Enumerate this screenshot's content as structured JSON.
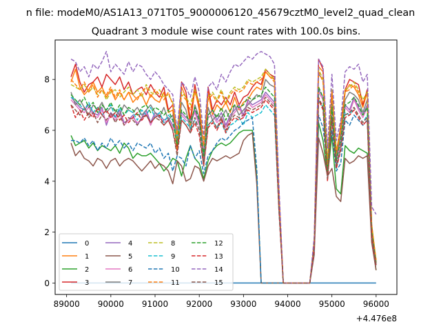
{
  "chart_data": {
    "type": "line",
    "suptitle": "n file: modeM0/AS1A13_071T05_9000006120_45679cztM0_level2_quad_clean",
    "title": "Quadrant 3 module wise count rates with 100.0s bins.",
    "xlabel": "",
    "ylabel": "",
    "x_offset_label": "+4.476e8",
    "xlim": [
      88740,
      96470
    ],
    "ylim": [
      -0.45,
      9.55
    ],
    "xticks": [
      89000,
      90000,
      91000,
      92000,
      93000,
      94000,
      95000,
      96000
    ],
    "xtick_labels": [
      "89000",
      "90000",
      "91000",
      "92000",
      "93000",
      "94000",
      "95000",
      "96000"
    ],
    "yticks": [
      0,
      2,
      4,
      6,
      8
    ],
    "ytick_labels": [
      "0",
      "2",
      "4",
      "6",
      "8"
    ],
    "grid": false,
    "legend_position": "lower-left",
    "x_start": 89100,
    "x_step": 100,
    "series": [
      {
        "name": "0",
        "color": "#1f77b4",
        "dash": "solid",
        "values": [
          0,
          0,
          0,
          0,
          0,
          0,
          0,
          0,
          0,
          0,
          0,
          0,
          0,
          0,
          0,
          0,
          0,
          0,
          0,
          0,
          0,
          0,
          0,
          0,
          0,
          0,
          0,
          0,
          0,
          0,
          0,
          0,
          0,
          0,
          0,
          0,
          0,
          0,
          0,
          0,
          0,
          0,
          0,
          0,
          0,
          0,
          0,
          0,
          0,
          0,
          0,
          0,
          0,
          0,
          0,
          0,
          0,
          0,
          0,
          0,
          0,
          0,
          0,
          0,
          0,
          0,
          0,
          0,
          0,
          0
        ]
      },
      {
        "name": "1",
        "color": "#ff7f0e",
        "dash": "solid",
        "values": [
          7.9,
          8.4,
          7.7,
          7.4,
          7.6,
          7.9,
          7.5,
          7.7,
          7.3,
          7.6,
          7.2,
          7.5,
          7.2,
          7.5,
          7.1,
          7.3,
          7.4,
          7.0,
          7.4,
          7.2,
          7.1,
          7.5,
          6.7,
          6.8,
          5.2,
          7.7,
          7.3,
          6.2,
          7.6,
          6.8,
          4.9,
          7.5,
          6.6,
          7.0,
          6.8,
          7.1,
          6.7,
          7.3,
          6.8,
          7.1,
          7.2,
          7.5,
          7.7,
          7.6,
          8.3,
          8.1,
          8.0,
          3.5,
          0,
          0,
          0,
          0,
          0,
          0,
          0,
          1.5,
          8.5,
          8.3,
          4.5,
          7.4,
          5.0,
          6.0,
          7.5,
          7.8,
          7.7,
          7.4,
          6.9,
          7.5,
          2.2,
          0.7
        ]
      },
      {
        "name": "2",
        "color": "#2ca02c",
        "dash": "solid",
        "values": [
          5.8,
          5.4,
          5.5,
          5.6,
          5.3,
          5.5,
          5.2,
          5.4,
          5.3,
          5.2,
          5.4,
          5.1,
          5.5,
          5.3,
          4.9,
          5.1,
          5.0,
          5.0,
          5.1,
          4.9,
          4.7,
          4.4,
          4.6,
          4.9,
          4.8,
          4.2,
          4.9,
          5.4,
          4.9,
          4.7,
          4.1,
          4.8,
          5.2,
          5.4,
          5.5,
          5.4,
          5.5,
          5.7,
          5.9,
          6.0,
          6.0,
          6.0,
          4.2,
          0,
          0,
          0,
          0,
          0,
          0,
          0,
          0,
          0,
          0,
          0,
          0,
          1.4,
          6.3,
          5.6,
          4.2,
          5.8,
          3.7,
          3.5,
          5.4,
          5.2,
          5.1,
          5.3,
          5.2,
          5.1,
          1.8,
          0.5
        ]
      },
      {
        "name": "3",
        "color": "#d62728",
        "dash": "solid",
        "values": [
          8.1,
          8.6,
          7.9,
          7.5,
          7.8,
          7.9,
          8.1,
          7.7,
          8.2,
          8.0,
          7.8,
          8.1,
          7.6,
          7.9,
          7.4,
          7.6,
          7.7,
          7.4,
          7.8,
          7.5,
          7.3,
          7.7,
          6.8,
          7.0,
          5.6,
          7.9,
          7.5,
          6.4,
          7.8,
          6.9,
          5.0,
          7.7,
          6.8,
          7.2,
          7.0,
          7.3,
          7.0,
          7.5,
          7.0,
          7.3,
          7.4,
          7.7,
          7.9,
          7.8,
          8.4,
          8.2,
          8.1,
          3.6,
          0,
          0,
          0,
          0,
          0,
          0,
          0,
          1.6,
          8.8,
          8.4,
          4.6,
          7.6,
          5.1,
          6.2,
          7.6,
          8.0,
          7.9,
          7.8,
          7.0,
          7.6,
          2.3,
          0.8
        ]
      },
      {
        "name": "4",
        "color": "#9467bd",
        "dash": "solid",
        "values": [
          7.3,
          7.1,
          6.9,
          6.8,
          7.0,
          6.7,
          6.6,
          6.9,
          6.2,
          6.7,
          6.5,
          6.8,
          6.3,
          6.4,
          6.6,
          6.2,
          6.5,
          6.8,
          6.3,
          6.7,
          6.6,
          6.4,
          6.5,
          6.2,
          5.9,
          6.7,
          6.5,
          6.4,
          6.8,
          6.3,
          5.4,
          6.6,
          6.8,
          6.4,
          6.7,
          6.2,
          6.6,
          6.8,
          7.0,
          6.6,
          7.2,
          7.0,
          7.1,
          7.2,
          7.5,
          7.3,
          7.1,
          3.1,
          0,
          0,
          0,
          0,
          0,
          0,
          0,
          1.4,
          7.6,
          7.3,
          4.4,
          6.9,
          4.8,
          5.6,
          7.0,
          6.8,
          7.3,
          6.9,
          6.6,
          7.0,
          2.0,
          0.7
        ]
      },
      {
        "name": "5",
        "color": "#8c564b",
        "dash": "solid",
        "values": [
          5.5,
          5.0,
          5.2,
          4.9,
          4.8,
          4.6,
          4.9,
          4.8,
          4.5,
          4.8,
          4.9,
          4.6,
          4.8,
          4.9,
          4.8,
          4.6,
          4.4,
          4.6,
          4.8,
          4.5,
          4.7,
          4.6,
          4.4,
          3.9,
          4.8,
          4.6,
          4.0,
          4.1,
          4.6,
          4.5,
          4.0,
          4.6,
          4.9,
          4.8,
          4.9,
          5.0,
          4.9,
          5.0,
          5.1,
          5.6,
          5.8,
          5.9,
          3.9,
          0,
          0,
          0,
          0,
          0,
          0,
          0,
          0,
          0,
          0,
          0,
          0,
          1.1,
          5.7,
          5.1,
          4.2,
          4.5,
          3.4,
          3.2,
          4.9,
          4.7,
          4.8,
          5.0,
          4.9,
          5.0,
          1.6,
          0.5
        ]
      },
      {
        "name": "6",
        "color": "#e377c2",
        "dash": "solid",
        "values": [
          7.2,
          7.0,
          6.8,
          6.7,
          6.9,
          6.6,
          6.5,
          6.8,
          6.3,
          6.6,
          6.4,
          6.7,
          6.2,
          6.4,
          6.5,
          6.3,
          6.4,
          6.7,
          6.2,
          6.6,
          6.5,
          6.3,
          6.4,
          6.1,
          5.8,
          6.6,
          6.4,
          6.3,
          6.7,
          6.2,
          5.3,
          6.5,
          6.6,
          6.3,
          6.5,
          6.1,
          6.5,
          6.7,
          6.9,
          6.5,
          7.1,
          6.9,
          7.0,
          7.1,
          7.4,
          7.2,
          7.0,
          3.0,
          0,
          0,
          0,
          0,
          0,
          0,
          0,
          1.3,
          7.5,
          7.2,
          4.4,
          6.8,
          4.7,
          5.5,
          6.9,
          6.7,
          7.2,
          6.8,
          6.5,
          6.9,
          1.9,
          0.7
        ]
      },
      {
        "name": "7",
        "color": "#7f7f7f",
        "dash": "solid",
        "values": [
          7.5,
          7.0,
          7.2,
          6.9,
          6.6,
          7.0,
          6.8,
          7.1,
          6.7,
          6.9,
          6.8,
          6.6,
          7.0,
          6.8,
          6.7,
          6.9,
          6.6,
          6.8,
          7.0,
          6.7,
          6.5,
          6.9,
          6.4,
          6.6,
          5.5,
          7.1,
          6.8,
          6.0,
          7.0,
          6.5,
          4.8,
          6.9,
          6.4,
          6.6,
          6.5,
          6.8,
          6.4,
          7.0,
          6.6,
          6.8,
          7.0,
          7.2,
          7.4,
          7.3,
          8.0,
          7.8,
          7.7,
          3.3,
          0,
          0,
          0,
          0,
          0,
          0,
          0,
          1.5,
          8.2,
          8.0,
          4.4,
          7.1,
          4.9,
          5.8,
          7.2,
          7.5,
          7.4,
          7.2,
          6.7,
          7.2,
          2.1,
          0.7
        ]
      },
      {
        "name": "8",
        "color": "#bcbd22",
        "dash": "dashed",
        "values": [
          7.8,
          7.7,
          7.6,
          7.8,
          7.5,
          7.7,
          7.4,
          7.6,
          7.2,
          7.5,
          7.6,
          7.3,
          7.5,
          7.7,
          7.4,
          7.6,
          7.3,
          7.8,
          7.5,
          7.4,
          7.6,
          7.3,
          7.4,
          7.1,
          5.9,
          7.5,
          7.3,
          7.0,
          7.6,
          7.1,
          5.6,
          7.3,
          7.5,
          7.2,
          7.6,
          7.1,
          7.5,
          7.7,
          7.6,
          7.7,
          8.0,
          7.9,
          8.0,
          8.1,
          8.4,
          8.2,
          8.0,
          3.5,
          0,
          0,
          0,
          0,
          0,
          0,
          0,
          1.6,
          8.4,
          8.0,
          4.7,
          7.6,
          5.2,
          6.1,
          7.6,
          7.7,
          7.9,
          7.6,
          7.2,
          7.5,
          2.3,
          0.9
        ]
      },
      {
        "name": "9",
        "color": "#17becf",
        "dash": "dashed",
        "values": [
          7.3,
          7.2,
          7.0,
          6.8,
          7.1,
          6.7,
          6.9,
          6.6,
          6.8,
          7.0,
          6.5,
          6.9,
          6.6,
          6.8,
          6.7,
          6.4,
          6.8,
          6.6,
          6.9,
          6.5,
          6.7,
          6.3,
          6.6,
          6.4,
          5.7,
          6.5,
          6.3,
          6.1,
          6.4,
          6.0,
          5.1,
          6.2,
          6.4,
          6.1,
          6.3,
          5.9,
          6.2,
          6.3,
          6.5,
          6.2,
          6.7,
          6.5,
          6.6,
          6.7,
          7.0,
          6.8,
          6.6,
          2.9,
          0,
          0,
          0,
          0,
          0,
          0,
          0,
          1.3,
          7.2,
          6.9,
          4.2,
          6.5,
          4.5,
          5.3,
          6.7,
          6.6,
          6.9,
          6.6,
          6.3,
          6.6,
          1.9,
          0.7
        ]
      },
      {
        "name": "10",
        "color": "#1f77b4",
        "dash": "dashed",
        "values": [
          5.6,
          5.6,
          5.5,
          5.7,
          5.4,
          5.6,
          5.2,
          5.5,
          5.3,
          5.7,
          5.4,
          5.6,
          5.3,
          5.5,
          5.2,
          5.5,
          5.4,
          5.3,
          5.5,
          5.1,
          5.3,
          4.9,
          5.1,
          4.4,
          5.0,
          4.9,
          4.6,
          5.4,
          4.9,
          5.2,
          4.3,
          5.0,
          5.2,
          5.5,
          5.7,
          5.6,
          5.8,
          6.0,
          6.1,
          6.3,
          6.4,
          6.5,
          4.5,
          0,
          0,
          0,
          0,
          0,
          0,
          0,
          0,
          0,
          0,
          0,
          0,
          1.6,
          6.6,
          6.1,
          4.6,
          6.0,
          4.4,
          4.7,
          6.4,
          6.2,
          6.6,
          6.4,
          6.2,
          6.4,
          2.0,
          0.8
        ]
      },
      {
        "name": "11",
        "color": "#ff7f0e",
        "dash": "dashed",
        "values": [
          8.0,
          7.8,
          7.6,
          7.9,
          7.5,
          7.8,
          7.3,
          7.6,
          7.4,
          7.7,
          7.3,
          7.6,
          7.2,
          7.5,
          7.4,
          7.2,
          7.5,
          7.7,
          7.3,
          7.6,
          7.4,
          7.2,
          7.5,
          7.0,
          5.7,
          7.4,
          7.2,
          6.8,
          7.5,
          7.0,
          5.4,
          7.2,
          7.4,
          7.1,
          7.5,
          7.0,
          7.4,
          7.6,
          7.5,
          7.6,
          7.9,
          7.8,
          7.9,
          8.0,
          8.3,
          8.1,
          7.9,
          3.4,
          0,
          0,
          0,
          0,
          0,
          0,
          0,
          1.6,
          8.3,
          7.9,
          4.6,
          7.5,
          5.1,
          6.0,
          7.5,
          7.6,
          7.8,
          7.5,
          7.1,
          7.4,
          2.2,
          0.9
        ]
      },
      {
        "name": "12",
        "color": "#2ca02c",
        "dash": "dashed",
        "values": [
          7.4,
          7.2,
          7.0,
          7.3,
          6.9,
          7.1,
          6.7,
          7.0,
          6.8,
          7.1,
          6.7,
          7.0,
          6.6,
          6.9,
          6.8,
          6.6,
          6.9,
          7.0,
          6.7,
          6.9,
          6.8,
          6.6,
          6.8,
          6.4,
          5.4,
          6.8,
          6.6,
          6.3,
          6.9,
          6.4,
          5.0,
          6.6,
          6.8,
          6.5,
          6.9,
          6.4,
          6.8,
          7.0,
          6.9,
          7.0,
          7.3,
          7.2,
          7.3,
          7.4,
          7.7,
          7.5,
          7.3,
          3.2,
          0,
          0,
          0,
          0,
          0,
          0,
          0,
          1.5,
          7.7,
          7.3,
          4.3,
          6.9,
          4.8,
          5.6,
          7.0,
          7.1,
          7.3,
          7.0,
          6.6,
          6.9,
          2.0,
          0.8
        ]
      },
      {
        "name": "13",
        "color": "#d62728",
        "dash": "dashed",
        "values": [
          7.0,
          6.5,
          6.8,
          6.4,
          6.7,
          6.5,
          6.9,
          6.6,
          6.8,
          6.5,
          6.7,
          6.4,
          6.6,
          6.3,
          6.5,
          6.7,
          6.4,
          6.6,
          6.3,
          6.5,
          6.6,
          6.2,
          6.4,
          6.0,
          5.2,
          6.4,
          6.2,
          5.9,
          6.3,
          5.8,
          4.6,
          6.1,
          6.3,
          6.0,
          6.4,
          5.9,
          6.3,
          6.5,
          6.4,
          6.5,
          6.8,
          6.7,
          6.8,
          6.9,
          7.2,
          7.0,
          6.8,
          2.9,
          0,
          0,
          0,
          0,
          0,
          0,
          0,
          1.3,
          7.2,
          6.8,
          4.0,
          6.4,
          4.5,
          5.2,
          6.5,
          6.6,
          6.8,
          6.5,
          6.2,
          6.4,
          1.8,
          0.7
        ]
      },
      {
        "name": "14",
        "color": "#9467bd",
        "dash": "dashed",
        "values": [
          8.8,
          8.7,
          8.3,
          8.5,
          8.1,
          8.6,
          8.4,
          8.7,
          9.1,
          8.3,
          8.6,
          8.4,
          8.2,
          8.7,
          8.3,
          8.6,
          8.5,
          8.2,
          8.0,
          8.3,
          8.1,
          7.8,
          7.6,
          7.4,
          6.0,
          7.9,
          7.7,
          7.3,
          8.1,
          7.5,
          5.8,
          7.7,
          7.9,
          7.6,
          8.2,
          7.9,
          8.3,
          8.6,
          8.5,
          8.7,
          8.9,
          8.8,
          9.0,
          9.1,
          9.0,
          8.9,
          8.6,
          3.9,
          0,
          0,
          0,
          0,
          0,
          0,
          0,
          1.8,
          8.8,
          8.5,
          5.3,
          8.2,
          5.6,
          6.4,
          8.3,
          8.5,
          8.4,
          8.6,
          7.9,
          8.2,
          3.0,
          2.7
        ]
      },
      {
        "name": "15",
        "color": "#8c564b",
        "dash": "dashed",
        "values": [
          7.0,
          6.8,
          6.6,
          6.9,
          6.5,
          6.7,
          6.3,
          6.6,
          6.4,
          6.7,
          6.3,
          6.6,
          6.2,
          6.5,
          6.4,
          6.2,
          6.5,
          6.6,
          6.3,
          6.5,
          6.4,
          6.2,
          6.4,
          6.0,
          5.0,
          6.4,
          6.2,
          5.9,
          6.5,
          6.0,
          4.6,
          6.2,
          6.4,
          6.1,
          6.5,
          6.0,
          6.4,
          6.6,
          6.5,
          6.6,
          6.9,
          6.8,
          6.9,
          7.0,
          7.3,
          7.1,
          6.9,
          3.0,
          0,
          0,
          0,
          0,
          0,
          0,
          0,
          1.4,
          7.3,
          6.9,
          4.1,
          6.5,
          4.6,
          5.3,
          6.6,
          6.7,
          6.9,
          6.6,
          6.3,
          6.5,
          1.9,
          0.7
        ]
      }
    ]
  }
}
